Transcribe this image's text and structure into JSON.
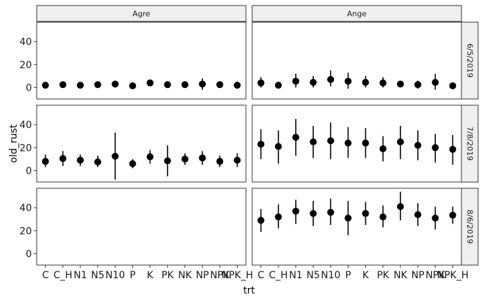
{
  "chart_data": {
    "type": "scatter",
    "subtype": "pointrange-facet-grid",
    "xlabel": "trt",
    "ylabel": "old_rust",
    "categories": [
      "C",
      "C_H",
      "N1",
      "N5",
      "N10",
      "P",
      "K",
      "PK",
      "NK",
      "NP",
      "NPK",
      "NPK_H"
    ],
    "y_ticks": [
      0,
      20,
      40
    ],
    "ylim": [
      -10,
      57
    ],
    "columns": [
      "Agre",
      "Ange"
    ],
    "rows": [
      "6/5/2019",
      "7/8/2019",
      "8/6/2019"
    ],
    "grid": false,
    "point_color": "#000000",
    "strip_fill": "#efefef",
    "panels": [
      {
        "column": "Agre",
        "row": "6/5/2019",
        "mean": [
          2,
          2.5,
          2,
          2.5,
          3,
          1.5,
          4,
          2.5,
          2.5,
          3,
          2.5,
          2
        ],
        "lower": [
          0,
          0.5,
          0,
          0.5,
          0,
          0,
          2,
          0.5,
          0.5,
          -2,
          0.5,
          0
        ],
        "upper": [
          4,
          4.5,
          4.5,
          4.5,
          6,
          3,
          6,
          4.5,
          4.5,
          8,
          4.5,
          4
        ]
      },
      {
        "column": "Ange",
        "row": "6/5/2019",
        "mean": [
          4,
          2,
          5.5,
          4.5,
          7,
          5.5,
          4.5,
          4,
          3,
          2.5,
          4.5,
          1.5
        ],
        "lower": [
          0,
          0,
          0,
          0,
          1,
          -1,
          0,
          0,
          0,
          -1,
          -2,
          0
        ],
        "upper": [
          9,
          4,
          12,
          10,
          15,
          13,
          10,
          9,
          6,
          6,
          12,
          3
        ]
      },
      {
        "column": "Agre",
        "row": "7/8/2019",
        "mean": [
          8,
          10.5,
          9,
          7.5,
          12.5,
          6,
          12,
          8.5,
          10,
          11,
          8,
          9
        ],
        "lower": [
          3,
          4,
          4,
          3,
          -8,
          2,
          6,
          -5,
          5,
          5,
          3,
          3
        ],
        "upper": [
          14,
          17,
          14,
          13,
          33,
          10,
          18,
          22,
          15,
          17,
          13,
          15
        ]
      },
      {
        "column": "Ange",
        "row": "7/8/2019",
        "mean": [
          23,
          21,
          29,
          25,
          26,
          24,
          24,
          19,
          25,
          22,
          20,
          18.5
        ],
        "lower": [
          10,
          6,
          13,
          11,
          10,
          11,
          11,
          8,
          10,
          9,
          7,
          5
        ],
        "upper": [
          36,
          35,
          45,
          39,
          42,
          38,
          37,
          30,
          39,
          35,
          32,
          31
        ]
      },
      {
        "column": "Agre",
        "row": "8/6/2019",
        "mean": [],
        "lower": [],
        "upper": []
      },
      {
        "column": "Ange",
        "row": "8/6/2019",
        "mean": [
          29,
          32,
          37,
          35,
          36,
          31,
          35,
          32,
          41,
          34,
          31,
          33.5
        ],
        "lower": [
          19,
          22,
          26,
          24,
          25,
          16,
          25,
          23,
          29,
          24,
          21,
          26
        ],
        "upper": [
          39,
          43,
          47,
          46,
          48,
          46,
          45,
          42,
          54,
          44,
          41,
          41
        ]
      }
    ]
  }
}
